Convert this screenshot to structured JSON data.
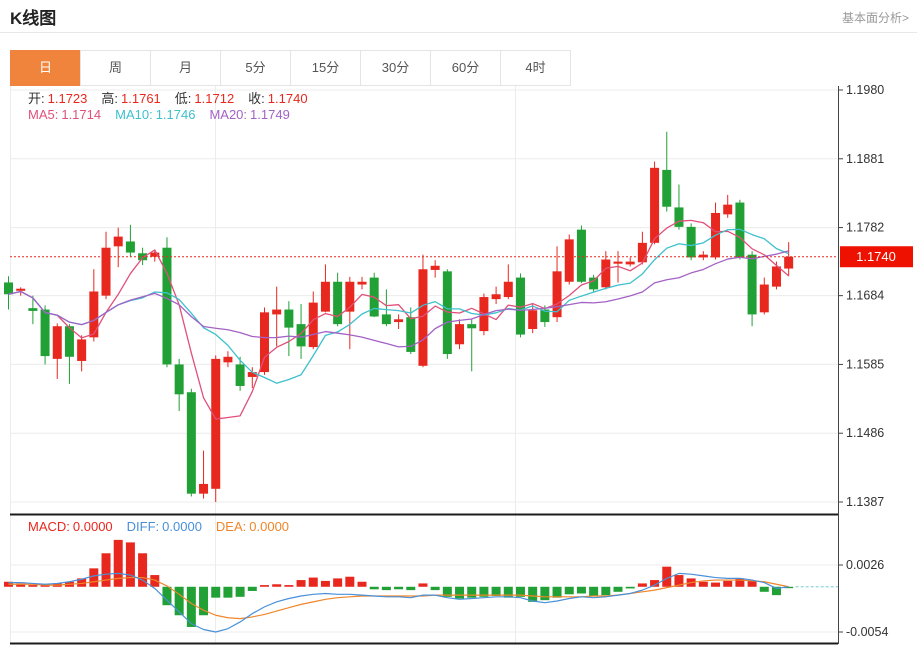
{
  "header": {
    "title": "K线图",
    "link": "基本面分析>"
  },
  "tabs": {
    "items": [
      "日",
      "周",
      "月",
      "5分",
      "15分",
      "30分",
      "60分",
      "4时"
    ],
    "active_index": 0
  },
  "readout": {
    "open_label": "开:",
    "open": "1.1723",
    "high_label": "高:",
    "high": "1.1761",
    "low_label": "低:",
    "low": "1.1712",
    "close_label": "收:",
    "close": "1.1740",
    "ma5_label": "MA5:",
    "ma5": "1.1714",
    "ma10_label": "MA10:",
    "ma10": "1.1746",
    "ma20_label": "MA20:",
    "ma20": "1.1749",
    "macd_label": "MACD:",
    "macd": "0.0000",
    "diff_label": "DIFF:",
    "diff": "0.0000",
    "dea_label": "DEA:",
    "dea": "0.0000"
  },
  "colors": {
    "up": "#e8281e",
    "down": "#21a135",
    "ma5": "#e0507a",
    "ma10": "#3ec0cd",
    "ma20": "#a362c6",
    "diff": "#4a90d9",
    "dea": "#f0862a",
    "price_tag": "#ee1100",
    "tab_active": "#f0843c",
    "grid": "#ececec",
    "axis": "#444444",
    "separator": "#1c1c1c",
    "label_text": "#333333",
    "zero_dash": "#8fd8dc"
  },
  "chart_data": {
    "type": "candlestick+macd",
    "title": "K线图",
    "legend": [
      "MA5",
      "MA10",
      "MA20",
      "MACD",
      "DIFF",
      "DEA"
    ],
    "price_ticks": [
      1.198,
      1.1881,
      1.1782,
      1.1684,
      1.1585,
      1.1486,
      1.1387
    ],
    "last_price": 1.174,
    "macd_ticks": [
      0.0026,
      -0.0054
    ],
    "ma_periods": [
      5,
      10,
      20
    ],
    "candles": [
      [
        1.1703,
        1.1712,
        1.1664,
        1.1686
      ],
      [
        1.1691,
        1.1696,
        1.1684,
        1.1694
      ],
      [
        1.1666,
        1.1684,
        1.1643,
        1.1662
      ],
      [
        1.1664,
        1.167,
        1.1585,
        1.1597
      ],
      [
        1.1593,
        1.1644,
        1.1564,
        1.164
      ],
      [
        1.164,
        1.1643,
        1.1557,
        1.1596
      ],
      [
        1.159,
        1.1627,
        1.1575,
        1.1621
      ],
      [
        1.1624,
        1.1722,
        1.1618,
        1.169
      ],
      [
        1.1684,
        1.1776,
        1.1679,
        1.1753
      ],
      [
        1.1755,
        1.1782,
        1.1725,
        1.1769
      ],
      [
        1.1762,
        1.1786,
        1.174,
        1.1746
      ],
      [
        1.1745,
        1.1753,
        1.1728,
        1.1735
      ],
      [
        1.174,
        1.175,
        1.1733,
        1.1746
      ],
      [
        1.1753,
        1.1768,
        1.1581,
        1.1585
      ],
      [
        1.1585,
        1.1593,
        1.1518,
        1.1542
      ],
      [
        1.1545,
        1.155,
        1.1395,
        1.1399
      ],
      [
        1.1399,
        1.1461,
        1.1392,
        1.1413
      ],
      [
        1.1406,
        1.1598,
        1.1387,
        1.1593
      ],
      [
        1.1588,
        1.1604,
        1.1581,
        1.1596
      ],
      [
        1.1585,
        1.1596,
        1.1547,
        1.1554
      ],
      [
        1.1567,
        1.1581,
        1.1551,
        1.1574
      ],
      [
        1.1574,
        1.1667,
        1.157,
        1.166
      ],
      [
        1.1657,
        1.1697,
        1.1611,
        1.1664
      ],
      [
        1.1664,
        1.1676,
        1.1597,
        1.1638
      ],
      [
        1.1643,
        1.1672,
        1.1593,
        1.1611
      ],
      [
        1.161,
        1.169,
        1.1607,
        1.1674
      ],
      [
        1.1661,
        1.1729,
        1.166,
        1.1704
      ],
      [
        1.1704,
        1.1717,
        1.164,
        1.1643
      ],
      [
        1.1661,
        1.1711,
        1.1607,
        1.1704
      ],
      [
        1.17,
        1.1711,
        1.1693,
        1.1704
      ],
      [
        1.171,
        1.1717,
        1.1653,
        1.1654
      ],
      [
        1.1657,
        1.1693,
        1.164,
        1.1643
      ],
      [
        1.1646,
        1.1657,
        1.1636,
        1.165
      ],
      [
        1.1653,
        1.1667,
        1.16,
        1.1603
      ],
      [
        1.1583,
        1.1743,
        1.1581,
        1.1722
      ],
      [
        1.1721,
        1.1735,
        1.171,
        1.1727
      ],
      [
        1.1719,
        1.1722,
        1.1593,
        1.16
      ],
      [
        1.1614,
        1.165,
        1.1607,
        1.1643
      ],
      [
        1.1643,
        1.165,
        1.1575,
        1.1637
      ],
      [
        1.1633,
        1.1687,
        1.1627,
        1.1682
      ],
      [
        1.1679,
        1.1697,
        1.1672,
        1.1686
      ],
      [
        1.1682,
        1.1729,
        1.1679,
        1.1704
      ],
      [
        1.171,
        1.1716,
        1.1624,
        1.1628
      ],
      [
        1.1636,
        1.1672,
        1.163,
        1.1663
      ],
      [
        1.1664,
        1.167,
        1.1639,
        1.1646
      ],
      [
        1.1653,
        1.1755,
        1.1646,
        1.1719
      ],
      [
        1.1704,
        1.1772,
        1.17,
        1.1765
      ],
      [
        1.1779,
        1.1785,
        1.1702,
        1.1704
      ],
      [
        1.171,
        1.1714,
        1.1689,
        1.1693
      ],
      [
        1.1696,
        1.1748,
        1.1693,
        1.1736
      ],
      [
        1.173,
        1.1748,
        1.1703,
        1.1733
      ],
      [
        1.1729,
        1.1739,
        1.1726,
        1.1733
      ],
      [
        1.1732,
        1.1776,
        1.1729,
        1.176
      ],
      [
        1.176,
        1.1877,
        1.1758,
        1.1868
      ],
      [
        1.1865,
        1.192,
        1.1805,
        1.1812
      ],
      [
        1.1811,
        1.1844,
        1.1779,
        1.1783
      ],
      [
        1.1783,
        1.1788,
        1.1735,
        1.1739
      ],
      [
        1.1739,
        1.1748,
        1.1735,
        1.1743
      ],
      [
        1.1739,
        1.1818,
        1.1736,
        1.1803
      ],
      [
        1.1801,
        1.1829,
        1.1796,
        1.1815
      ],
      [
        1.1818,
        1.1822,
        1.1736,
        1.1739
      ],
      [
        1.1743,
        1.1748,
        1.164,
        1.1657
      ],
      [
        1.166,
        1.171,
        1.1657,
        1.17
      ],
      [
        1.1697,
        1.1733,
        1.1693,
        1.1726
      ],
      [
        1.1723,
        1.1761,
        1.1712,
        1.174
      ]
    ],
    "macd_hist": [
      0.0006,
      0.0004,
      0.0002,
      0.0002,
      0.0004,
      0.0006,
      0.001,
      0.0022,
      0.004,
      0.0056,
      0.0053,
      0.004,
      0.0014,
      -0.0022,
      -0.0034,
      -0.0048,
      -0.0034,
      -0.0013,
      -0.0013,
      -0.0012,
      -0.0005,
      0.0002,
      0.0003,
      0.0002,
      0.0008,
      0.0011,
      0.0007,
      0.001,
      0.0012,
      0.0006,
      -0.0003,
      -0.0004,
      -0.0003,
      -0.0004,
      0.0004,
      -0.0004,
      -0.0012,
      -0.0014,
      -0.0013,
      -0.0012,
      -0.0011,
      -0.0013,
      -0.0012,
      -0.0018,
      -0.0016,
      -0.0013,
      -0.0009,
      -0.0008,
      -0.0011,
      -0.001,
      -0.0006,
      -0.0002,
      0.0004,
      0.0008,
      0.0024,
      0.0014,
      0.001,
      0.0006,
      0.0005,
      0.0007,
      0.001,
      0.0007,
      -0.0006,
      -0.001,
      -0.0001
    ],
    "diff_line": [
      0.0005,
      0.0005,
      0.0004,
      0.0003,
      0.0004,
      0.0006,
      0.0009,
      0.0013,
      0.0015,
      0.0016,
      0.0014,
      0.0008,
      -0.0002,
      -0.0016,
      -0.003,
      -0.0044,
      -0.0051,
      -0.0054,
      -0.005,
      -0.0042,
      -0.0032,
      -0.0024,
      -0.0018,
      -0.0014,
      -0.0011,
      -0.0009,
      -0.0008,
      -0.0009,
      -0.0009,
      -0.001,
      -0.0011,
      -0.0012,
      -0.0012,
      -0.0013,
      -0.001,
      -0.001,
      -0.0013,
      -0.0015,
      -0.0014,
      -0.0013,
      -0.0012,
      -0.0012,
      -0.0013,
      -0.0017,
      -0.0019,
      -0.0017,
      -0.0014,
      -0.0012,
      -0.0013,
      -0.0012,
      -0.001,
      -0.0008,
      -0.0004,
      0.0002,
      0.001,
      0.0016,
      0.0015,
      0.0013,
      0.0011,
      0.001,
      0.001,
      0.0008,
      0.0005,
      -0.0002,
      0.0
    ],
    "dea_line": [
      0.0003,
      0.0003,
      0.0003,
      0.0002,
      0.0002,
      0.0003,
      0.0004,
      0.0006,
      0.0008,
      0.001,
      0.0011,
      0.0011,
      0.0008,
      0.0001,
      -0.0009,
      -0.002,
      -0.0028,
      -0.0034,
      -0.0037,
      -0.0038,
      -0.0036,
      -0.0033,
      -0.0029,
      -0.0025,
      -0.0021,
      -0.0018,
      -0.0015,
      -0.0013,
      -0.0012,
      -0.0011,
      -0.0011,
      -0.0011,
      -0.0011,
      -0.0011,
      -0.0011,
      -0.001,
      -0.001,
      -0.001,
      -0.001,
      -0.001,
      -0.001,
      -0.001,
      -0.001,
      -0.0011,
      -0.0012,
      -0.0012,
      -0.0012,
      -0.0012,
      -0.0011,
      -0.0011,
      -0.001,
      -0.0008,
      -0.0006,
      -0.0004,
      -0.0001,
      0.0002,
      0.0005,
      0.0007,
      0.0008,
      0.0008,
      0.0008,
      0.0007,
      0.0006,
      0.0003,
      0.0
    ]
  }
}
